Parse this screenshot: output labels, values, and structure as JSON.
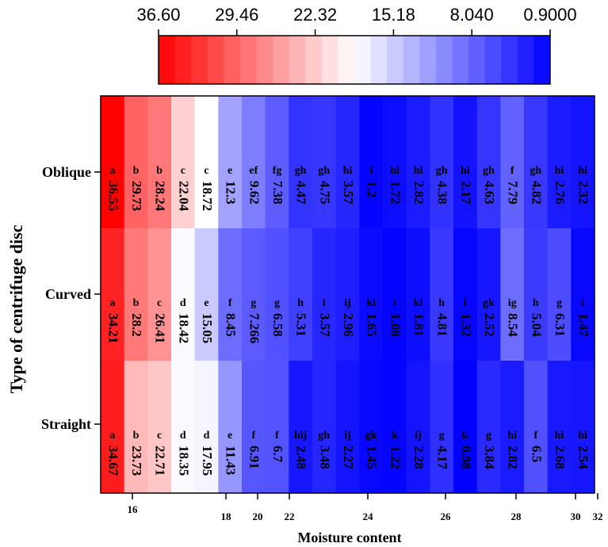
{
  "chart_data": {
    "type": "heatmap",
    "xlabel": "Moisture content",
    "ylabel": "Type of centrifuge disc",
    "y_categories": [
      "Oblique",
      "Curved",
      "Straight"
    ],
    "x_tick_labels": [
      "16",
      "18",
      "20",
      "22",
      "24",
      "26",
      "28",
      "30",
      "32"
    ],
    "colorbar": {
      "min": 0.9,
      "max": 36.6,
      "tick_labels": [
        "36.60",
        "29.46",
        "22.32",
        "15.18",
        "8.040",
        "0.9000"
      ],
      "low_color": "#0000ff",
      "mid_color": "#ffffff",
      "high_color": "#ff0000"
    },
    "rows": [
      {
        "name": "Oblique",
        "values": [
          36.55,
          29.73,
          28.24,
          22.04,
          18.72,
          12.3,
          9.62,
          7.38,
          4.47,
          4.75,
          3.57,
          1.2,
          1.72,
          2.82,
          4.38,
          2.17,
          4.63,
          7.79,
          4.82,
          2.76,
          2.32
        ],
        "value_labels": [
          "36.55",
          "29.73",
          "28.24",
          "22.04",
          "18.72",
          "12.3",
          "9.62",
          "7.38",
          "4.47",
          "4.75",
          "3.57",
          "1.2",
          "1.72",
          "2.82",
          "4.38",
          "2.17",
          "4.63",
          "7.79",
          "4.82",
          "2.76",
          "2.32"
        ],
        "letters": [
          "a",
          "b",
          "b",
          "c",
          "c",
          "e",
          "ef",
          "fg",
          "gh",
          "gh",
          "hi",
          "i",
          "hi",
          "hi",
          "gh",
          "hi",
          "gh",
          "f",
          "gh",
          "hi",
          "hi"
        ]
      },
      {
        "name": "Curved",
        "values": [
          34.21,
          28.2,
          26.41,
          18.42,
          15.05,
          8.45,
          7.266,
          6.58,
          5.31,
          3.57,
          2.96,
          1.65,
          1.08,
          1.81,
          4.81,
          1.32,
          2.52,
          8.54,
          5.04,
          6.31,
          1.47
        ],
        "value_labels": [
          "34.21",
          "28.2",
          "26.41",
          "18.42",
          "15.05",
          "8.45",
          "7.266",
          "6.58",
          "5.31",
          "3.57",
          "2.96",
          "1.65",
          "1.08",
          "1.81",
          "4.81",
          "1.32",
          "2.52",
          "8.54",
          "5.04",
          "6.31",
          "1.47"
        ],
        "letters": [
          "a",
          "b",
          "c",
          "d",
          "e",
          "f",
          "g",
          "g",
          "h",
          "i",
          "ij",
          "ki",
          "i",
          "ki",
          "h",
          "i",
          "gk",
          "ig",
          "h",
          "g",
          "i"
        ]
      },
      {
        "name": "Straight",
        "values": [
          34.67,
          23.73,
          22.71,
          18.35,
          17.95,
          11.43,
          6.91,
          6.7,
          2.48,
          3.48,
          2.27,
          1.45,
          1.22,
          2.28,
          4.17,
          0.98,
          3.84,
          2.82,
          6.5,
          2.68,
          2.54
        ],
        "value_labels": [
          "34.67",
          "23.73",
          "22.71",
          "18.35",
          "17.95",
          "11.43",
          "6.91",
          "6.7",
          "2.48",
          "3.48",
          "2.27",
          "1.45",
          "1.22",
          "2.28",
          "4.17",
          "0.98",
          "3.84",
          "2.82",
          "6.5",
          "2.68",
          "2.54"
        ],
        "letters": [
          "a",
          "b",
          "c",
          "d",
          "d",
          "e",
          "f",
          "f",
          "hij",
          "gh",
          "ij",
          "gk",
          "k",
          "ij",
          "g",
          "k",
          "g",
          "hi",
          "f",
          "hi",
          "hi"
        ]
      }
    ]
  }
}
